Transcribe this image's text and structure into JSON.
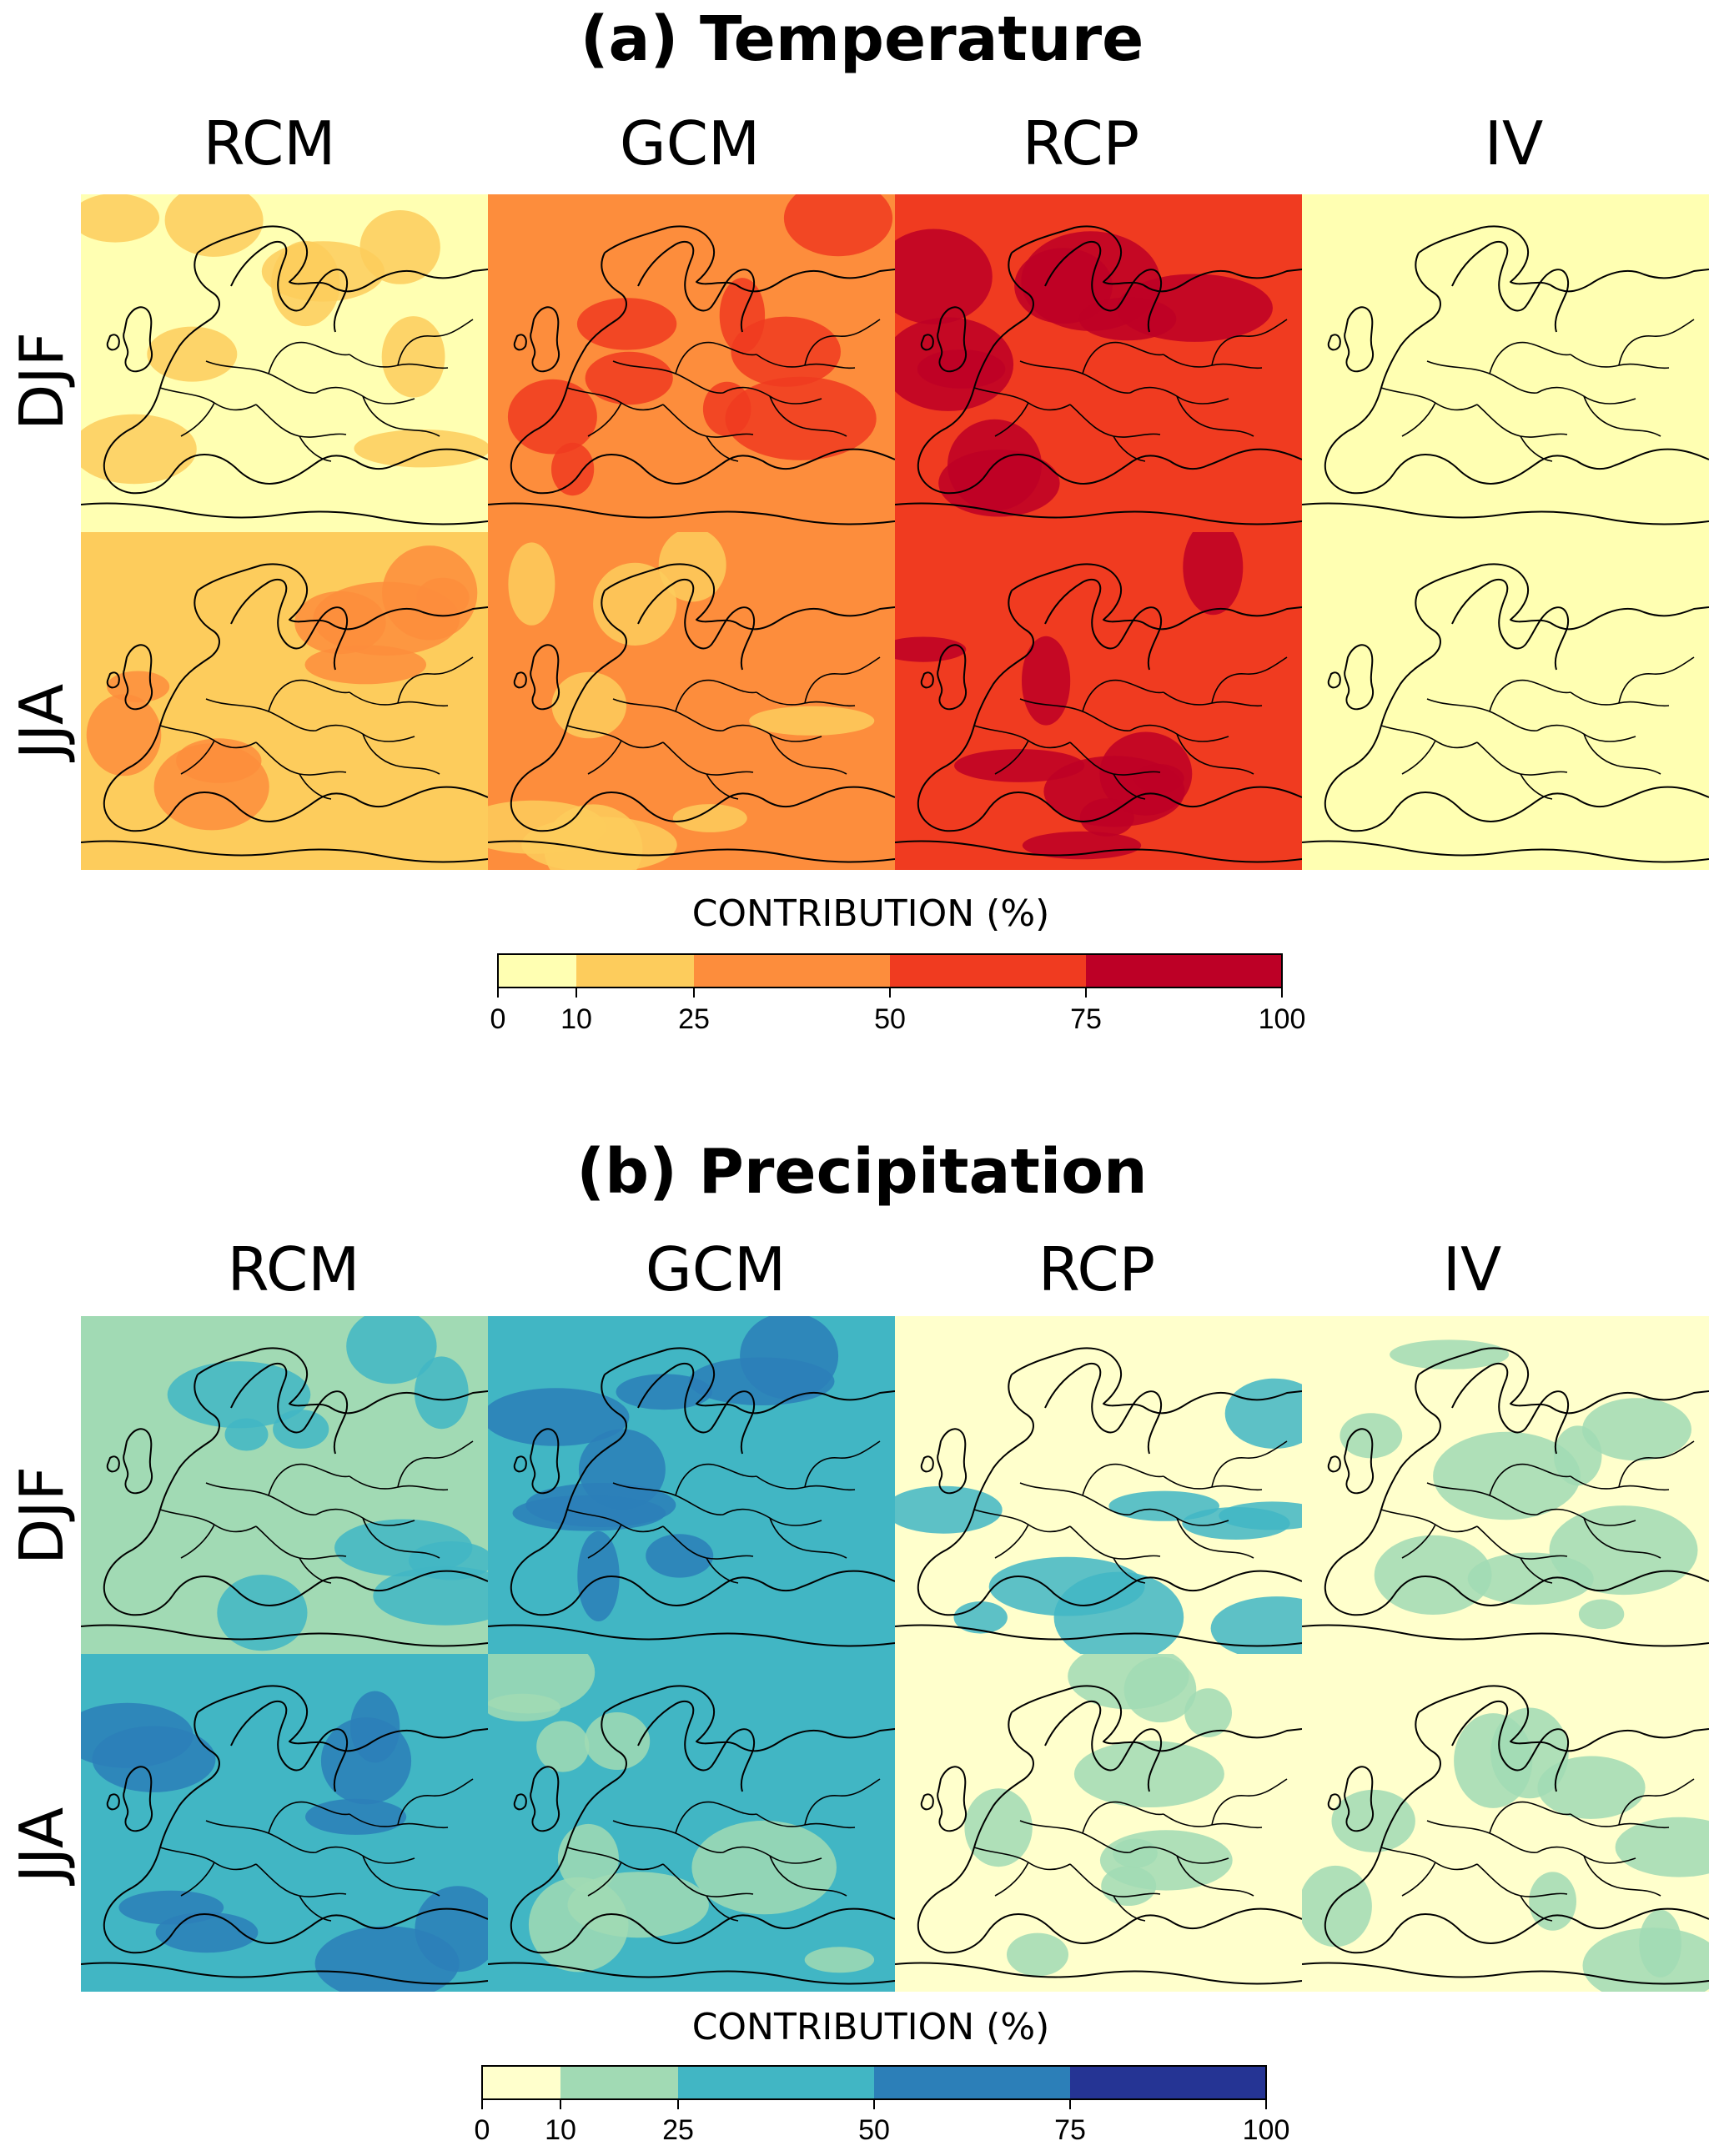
{
  "colors": {
    "temperature": [
      "#FFFFB2",
      "#FDCC5C",
      "#FD8D3C",
      "#F03B20",
      "#BD0026"
    ],
    "precipitation": [
      "#FFFFCC",
      "#A1DAB4",
      "#41B6C4",
      "#2C7FB8",
      "#253494"
    ]
  },
  "chart_data": [
    {
      "type": "heatmap",
      "title": "(a) Temperature",
      "columns": [
        "RCM",
        "GCM",
        "RCP",
        "IV"
      ],
      "rows": [
        "DJF",
        "JJA"
      ],
      "legend_title": "CONTRIBUTION (%)",
      "legend_breaks": [
        0,
        10,
        25,
        50,
        75,
        100
      ],
      "legend_tick_labels": [
        "0",
        "10",
        "25",
        "50",
        "75",
        "100"
      ],
      "dominant_class": [
        [
          0,
          2,
          3,
          0
        ],
        [
          1,
          2,
          3,
          0
        ]
      ],
      "secondary_class": [
        [
          1,
          3,
          4,
          0
        ],
        [
          2,
          1,
          4,
          0
        ]
      ]
    },
    {
      "type": "heatmap",
      "title": "(b) Precipitation",
      "columns": [
        "RCM",
        "GCM",
        "RCP",
        "IV"
      ],
      "rows": [
        "DJF",
        "JJA"
      ],
      "legend_title": "CONTRIBUTION (%)",
      "legend_breaks": [
        0,
        10,
        25,
        50,
        75,
        100
      ],
      "legend_tick_labels": [
        "0",
        "10",
        "25",
        "50",
        "75",
        "100"
      ],
      "dominant_class": [
        [
          1,
          2,
          0,
          0
        ],
        [
          2,
          2,
          0,
          0
        ]
      ],
      "secondary_class": [
        [
          2,
          3,
          2,
          1
        ],
        [
          3,
          1,
          1,
          1
        ]
      ]
    }
  ]
}
